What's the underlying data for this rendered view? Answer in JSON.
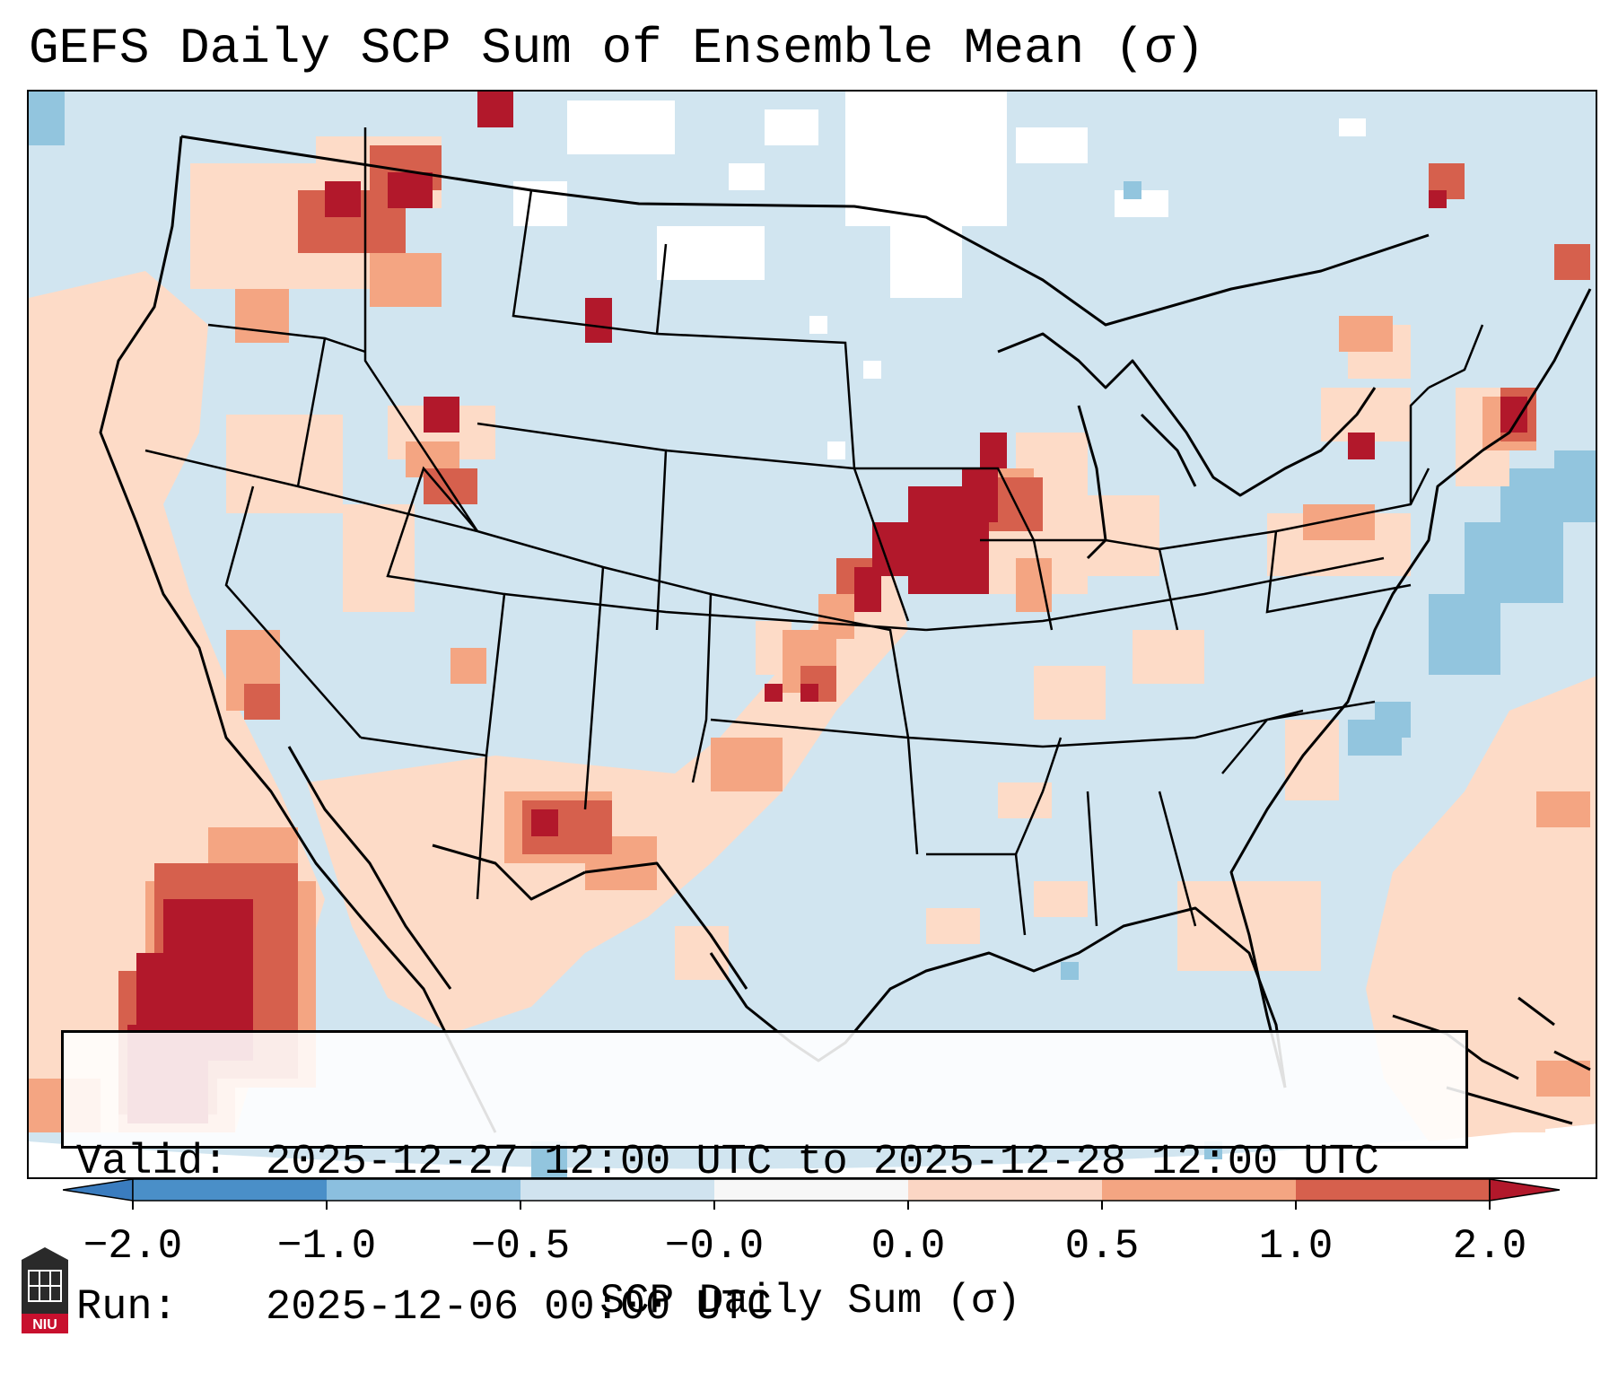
{
  "title": "GEFS Daily SCP Sum of Ensemble Mean (σ)",
  "info": {
    "valid_key": "Valid:",
    "valid_value": "2025-12-27 12:00 UTC to 2025-12-28 12:00 UTC",
    "run_key": "Run:",
    "run_value": "2025-12-06 00:00 UTC"
  },
  "colorbar": {
    "label": "SCP Daily Sum (σ)",
    "ticks": [
      "−2.0",
      "−1.0",
      "−0.5",
      "−0.0",
      "0.0",
      "0.5",
      "1.0",
      "2.0"
    ],
    "bins": [
      {
        "range": "< -2.0",
        "color": "#3a7cbf"
      },
      {
        "range": "-2.0 to -1.0",
        "color": "#4a8fc8"
      },
      {
        "range": "-1.0 to -0.5",
        "color": "#8bbfdf"
      },
      {
        "range": "-0.5 to -0.0",
        "color": "#d0e3ef"
      },
      {
        "range": "-0.0 to 0.0",
        "color": "#f7f7f7"
      },
      {
        "range": "0.0 to 0.5",
        "color": "#fbd6c4"
      },
      {
        "range": "0.5 to 1.0",
        "color": "#f4a582"
      },
      {
        "range": "1.0 to 2.0",
        "color": "#d6604d"
      },
      {
        "range": "> 2.0",
        "color": "#b2182b"
      }
    ]
  },
  "colors": {
    "background_field": "#d1e5f0",
    "missing": "#ffffff",
    "positive_light": "#fddbc7",
    "positive_mid": "#f4a582",
    "positive_strong": "#d6604d",
    "positive_max": "#b2182b",
    "negative_mid": "#92c5de"
  },
  "logo": {
    "text": "NIU"
  }
}
